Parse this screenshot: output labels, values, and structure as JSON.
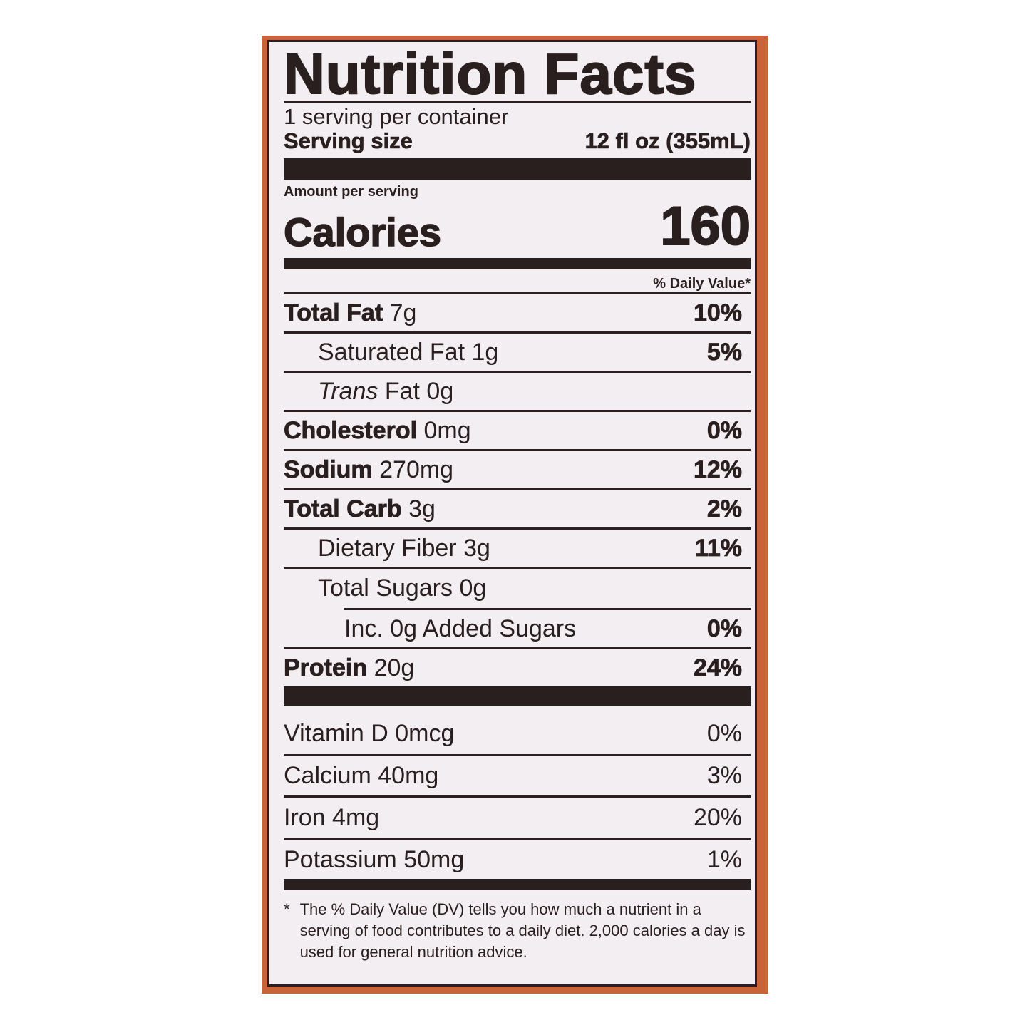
{
  "title": "Nutrition Facts",
  "servings_per_container": "1 serving per container",
  "serving_size_label": "Serving size",
  "serving_size_value": "12 fl oz (355mL)",
  "amount_per_serving": "Amount per serving",
  "calories_label": "Calories",
  "calories_value": "160",
  "daily_value_header": "% Daily Value*",
  "nutrients": [
    {
      "name": "Total Fat",
      "amount": "7g",
      "dv": "10%"
    },
    {
      "name": "Saturated Fat",
      "amount": "1g",
      "dv": "5%"
    },
    {
      "name": "Trans",
      "name_suffix": "Fat",
      "amount": "0g",
      "dv": ""
    },
    {
      "name": "Cholesterol",
      "amount": "0mg",
      "dv": "0%"
    },
    {
      "name": "Sodium",
      "amount": "270mg",
      "dv": "12%"
    },
    {
      "name": "Total Carb",
      "amount": "3g",
      "dv": "2%"
    },
    {
      "name": "Dietary Fiber",
      "amount": "3g",
      "dv": "11%"
    },
    {
      "name": "Total Sugars",
      "amount": "0g",
      "dv": ""
    },
    {
      "name": "Inc. 0g Added Sugars",
      "amount": "",
      "dv": "0%"
    },
    {
      "name": "Protein",
      "amount": "20g",
      "dv": "24%"
    }
  ],
  "vitamins": [
    {
      "name": "Vitamin D",
      "amount": "0mcg",
      "dv": "0%"
    },
    {
      "name": "Calcium",
      "amount": "40mg",
      "dv": "3%"
    },
    {
      "name": "Iron",
      "amount": "4mg",
      "dv": "20%"
    },
    {
      "name": "Potassium",
      "amount": "50mg",
      "dv": "1%"
    }
  ],
  "footnote_mark": "*",
  "footnote": "The % Daily Value (DV) tells you how much a nutrient in a serving of food contributes to a daily diet. 2,000 calories a day is used for general nutrition advice.",
  "colors": {
    "packaging": "#c9643a",
    "label_bg": "#f3eef2",
    "ink": "#2a1f1f"
  }
}
